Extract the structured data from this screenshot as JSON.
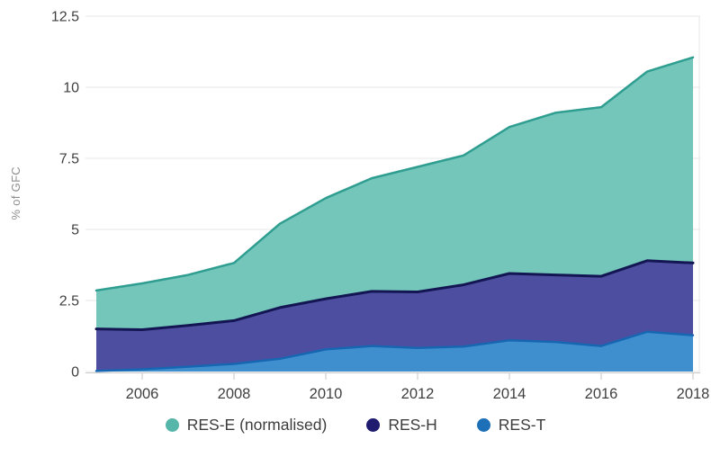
{
  "page": {
    "background": "#FFFFFF"
  },
  "chart_data": {
    "type": "area",
    "stacked": true,
    "title": "",
    "xlabel": "",
    "ylabel": "% of GFC",
    "x": [
      2005,
      2006,
      2007,
      2008,
      2009,
      2010,
      2011,
      2012,
      2013,
      2014,
      2015,
      2016,
      2017,
      2018
    ],
    "x_ticks": [
      2006,
      2008,
      2010,
      2012,
      2014,
      2016,
      2018
    ],
    "y_ticks": [
      0,
      2.5,
      5,
      7.5,
      10,
      12.5
    ],
    "ylim": [
      0,
      12.5
    ],
    "grid": "horizontal",
    "legend_position": "bottom",
    "stack_order": "bottom_to_top",
    "series": [
      {
        "name": "RES-T",
        "fill": "#3F8FCE",
        "stroke": "#1766B2",
        "stroke_width": 2.5,
        "values": [
          0.02,
          0.08,
          0.17,
          0.27,
          0.45,
          0.78,
          0.9,
          0.83,
          0.88,
          1.1,
          1.04,
          0.9,
          1.4,
          1.28
        ]
      },
      {
        "name": "RES-H",
        "fill": "#4E4EA0",
        "stroke": "#131653",
        "stroke_width": 3,
        "values": [
          1.48,
          1.39,
          1.45,
          1.52,
          1.8,
          1.78,
          1.92,
          1.97,
          2.17,
          2.35,
          2.36,
          2.45,
          2.5,
          2.54
        ]
      },
      {
        "name": "RES-E (normalised)",
        "fill": "#74C6BA",
        "stroke": "#2F9E91",
        "stroke_width": 2.5,
        "values": [
          1.35,
          1.63,
          1.78,
          2.03,
          2.95,
          3.54,
          3.98,
          4.4,
          4.55,
          5.15,
          5.7,
          5.95,
          6.65,
          7.23
        ]
      }
    ]
  },
  "legend": {
    "items": [
      {
        "label": "RES-E (normalised)",
        "color": "#55B6A9"
      },
      {
        "label": "RES-H",
        "color": "#1F1B6E"
      },
      {
        "label": "RES-T",
        "color": "#1D70B8"
      }
    ]
  },
  "axes": {
    "tick_label_color": "#3F3F3F",
    "axis_title_color": "#8F8F8F",
    "gridline_color": "#E7E7E7",
    "axis_line_color": "#C9C9C9",
    "tick_mark_color": "#C4C4C4"
  }
}
